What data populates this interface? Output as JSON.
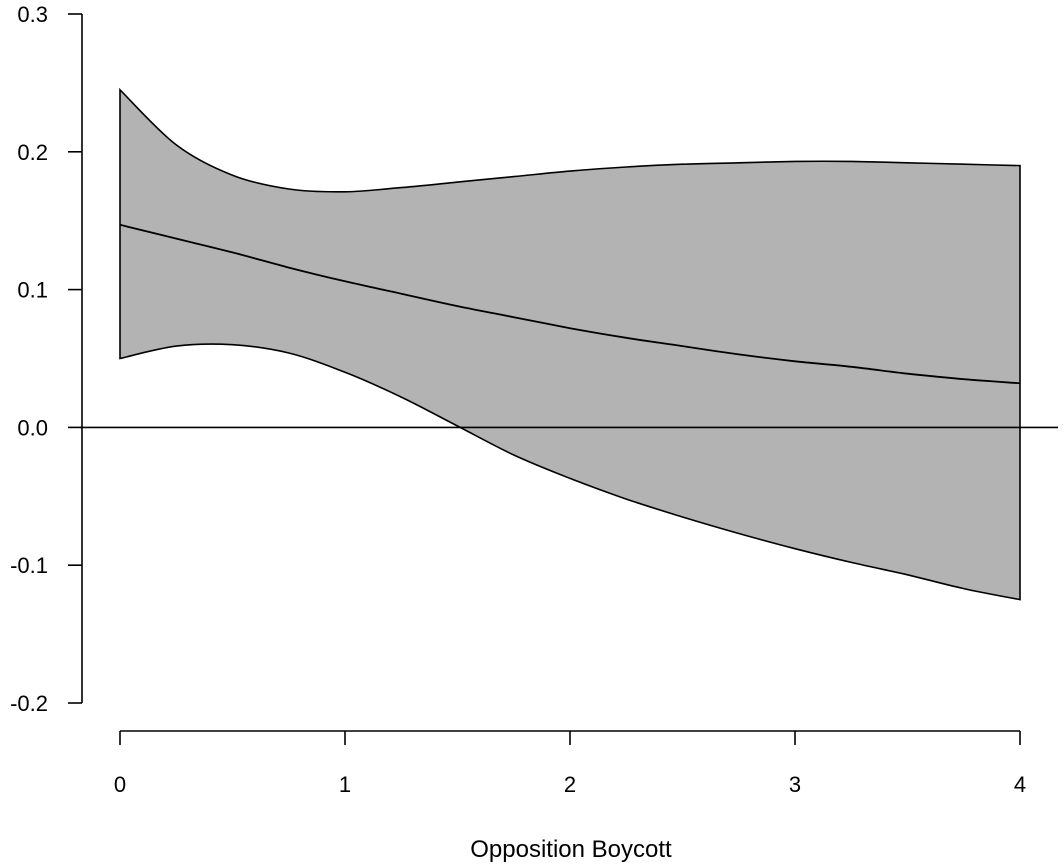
{
  "chart_data": {
    "type": "line",
    "title": "",
    "xlabel": "Opposition Boycott",
    "ylabel": "",
    "xlim": [
      0,
      4
    ],
    "ylim": [
      -0.2,
      0.3
    ],
    "x_ticks": [
      0,
      1,
      2,
      3,
      4
    ],
    "x_tick_labels": [
      "0",
      "1",
      "2",
      "3",
      "4"
    ],
    "y_ticks": [
      -0.2,
      -0.1,
      0.0,
      0.1,
      0.2,
      0.3
    ],
    "y_tick_labels": [
      "-0.2",
      "-0.1",
      "0.0",
      "0.1",
      "0.2",
      "0.3"
    ],
    "reference_line_y": 0.0,
    "grid": false,
    "colors": {
      "band": "#b3b3b3",
      "line": "#000000"
    },
    "x": [
      0,
      0.25,
      0.5,
      0.75,
      1.0,
      1.25,
      1.5,
      1.75,
      2.0,
      2.25,
      2.5,
      2.75,
      3.0,
      3.25,
      3.5,
      3.75,
      4.0
    ],
    "series": [
      {
        "values": [
          0.147,
          0.137,
          0.127,
          0.116,
          0.106,
          0.097,
          0.088,
          0.08,
          0.072,
          0.065,
          0.059,
          0.053,
          0.048,
          0.044,
          0.039,
          0.035,
          0.032
        ]
      }
    ],
    "band_upper": [
      0.245,
      0.205,
      0.183,
      0.173,
      0.171,
      0.174,
      0.178,
      0.182,
      0.186,
      0.189,
      0.191,
      0.192,
      0.193,
      0.193,
      0.192,
      0.191,
      0.19
    ],
    "band_lower": [
      0.05,
      0.059,
      0.06,
      0.054,
      0.04,
      0.022,
      0.001,
      -0.02,
      -0.037,
      -0.052,
      -0.065,
      -0.077,
      -0.088,
      -0.098,
      -0.107,
      -0.117,
      -0.125
    ]
  }
}
